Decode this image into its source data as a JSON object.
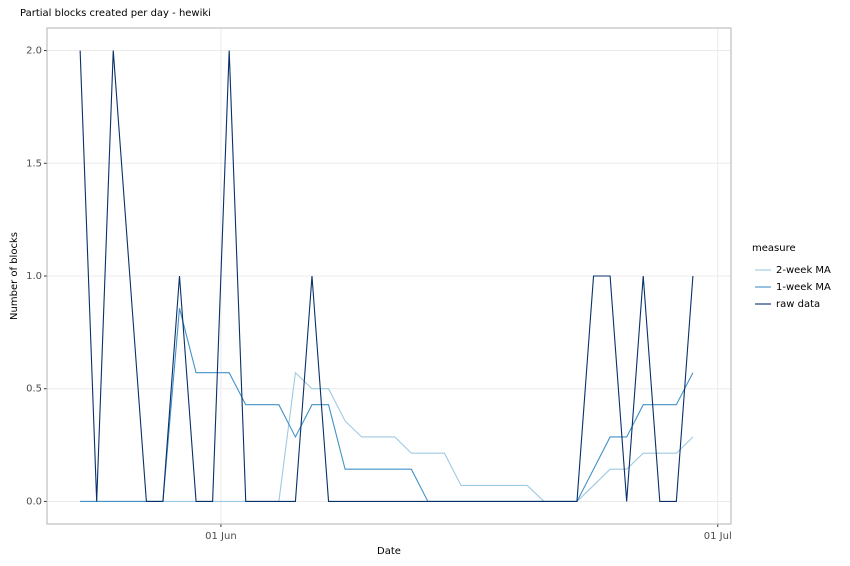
{
  "chart_data": {
    "type": "line",
    "title": "Partial blocks created per day - hewiki",
    "x_label": "Date",
    "y_label": "Number of blocks",
    "x": [
      -8.5,
      -7.5,
      -6.5,
      -5.5,
      -4.5,
      -3.5,
      -2.5,
      -1.5,
      -0.5,
      0.5,
      1.5,
      2.5,
      3.5,
      4.5,
      5.5,
      6.5,
      7.5,
      8.5,
      9.5,
      10.5,
      11.5,
      12.5,
      13.5,
      14.5,
      15.5,
      16.5,
      17.5,
      18.5,
      19.5,
      20.5,
      21.5,
      22.5,
      23.5,
      24.5,
      25.5,
      26.5,
      27.5,
      28.5
    ],
    "xlim": [
      -10.5,
      30.8
    ],
    "xticks": [
      {
        "value": 0,
        "label": "01 Jun"
      },
      {
        "value": 30,
        "label": "01 Jul"
      }
    ],
    "ylim": [
      -0.1,
      2.1
    ],
    "yticks": [
      {
        "value": 0,
        "label": "0.0"
      },
      {
        "value": 0.5,
        "label": "0.5"
      },
      {
        "value": 1,
        "label": "1.0"
      },
      {
        "value": 1.5,
        "label": "1.5"
      },
      {
        "value": 2,
        "label": "2.0"
      }
    ],
    "grid": true,
    "legend_title": "measure",
    "series": [
      {
        "name": "2-week MA",
        "color": "#9ecae1",
        "values": [
          0,
          0,
          0,
          0,
          0,
          0,
          0,
          0,
          0,
          0,
          0,
          0,
          0,
          0.571,
          0.5,
          0.5,
          0.357,
          0.286,
          0.286,
          0.286,
          0.214,
          0.214,
          0.214,
          0.071,
          0.071,
          0.071,
          0.071,
          0.071,
          0,
          0,
          0,
          0.071,
          0.143,
          0.143,
          0.214,
          0.214,
          0.214,
          0.286
        ]
      },
      {
        "name": "1-week MA",
        "color": "#4292c6",
        "values": [
          0,
          0,
          0,
          0,
          0,
          0,
          0.857,
          0.571,
          0.571,
          0.571,
          0.429,
          0.429,
          0.429,
          0.286,
          0.429,
          0.429,
          0.143,
          0.143,
          0.143,
          0.143,
          0.143,
          0,
          0,
          0,
          0,
          0,
          0,
          0,
          0,
          0,
          0,
          0.143,
          0.286,
          0.286,
          0.429,
          0.429,
          0.429,
          0.571
        ]
      },
      {
        "name": "raw data",
        "color": "#08306b",
        "values": [
          2,
          0,
          2,
          1,
          0,
          0,
          1,
          0,
          0,
          2,
          0,
          0,
          0,
          0,
          1,
          0,
          0,
          0,
          0,
          0,
          0,
          0,
          0,
          0,
          0,
          0,
          0,
          0,
          0,
          0,
          0,
          1,
          1,
          0,
          1,
          0,
          0,
          1
        ]
      }
    ]
  }
}
